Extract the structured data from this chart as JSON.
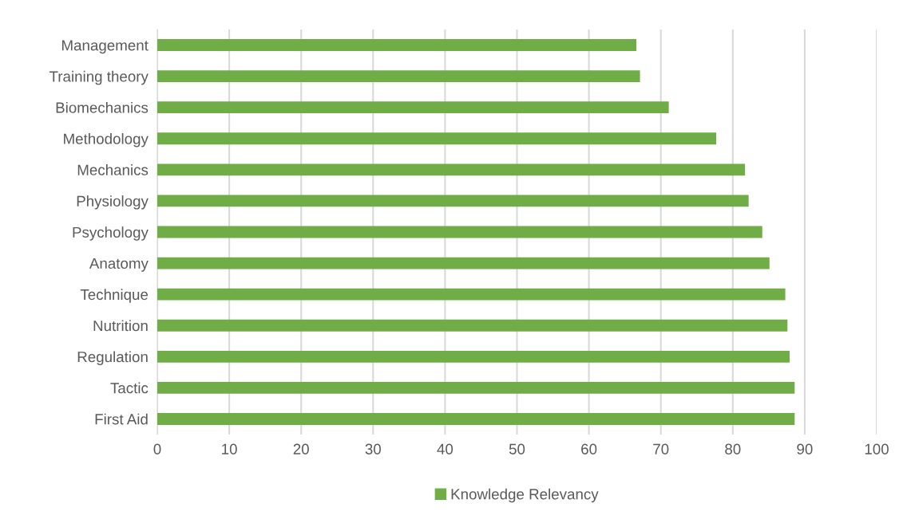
{
  "chart_data": {
    "type": "bar",
    "orientation": "horizontal",
    "categories": [
      "Management",
      "Training theory",
      "Biomechanics",
      "Methodology",
      "Mechanics",
      "Physiology",
      "Psychology",
      "Anatomy",
      "Technique",
      "Nutrition",
      "Regulation",
      "Tactic",
      "First Aid"
    ],
    "series": [
      {
        "name": "Knowledge Relevancy",
        "color": "#70ad47",
        "values": [
          66.6,
          67.1,
          71.1,
          77.7,
          81.7,
          82.2,
          84.1,
          85.1,
          87.3,
          87.6,
          87.9,
          88.6,
          88.6
        ]
      }
    ],
    "xlim": [
      0,
      100
    ],
    "xticks": [
      0,
      10,
      20,
      30,
      40,
      50,
      60,
      70,
      80,
      90,
      100
    ],
    "grid": "x",
    "legend": "bottom"
  }
}
